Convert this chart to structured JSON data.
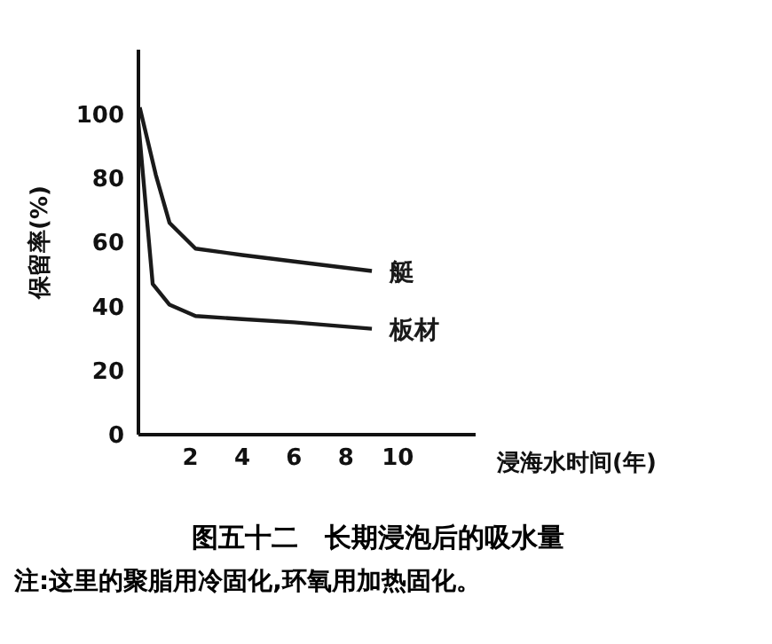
{
  "chart_data": {
    "type": "line",
    "title": "图五十二　长期浸泡后的吸水量",
    "xlabel": "浸海水时间(年)",
    "ylabel": "保留率(%)",
    "annotations": [
      "注:这里的聚脂用冷固化,环氧用加热固化。"
    ],
    "xlim": [
      0,
      13
    ],
    "xticks": [
      2,
      4,
      6,
      8,
      10
    ],
    "ylim": [
      0,
      120
    ],
    "yticks": [
      0,
      20,
      40,
      60,
      80,
      100
    ],
    "grid": false,
    "marker": "none",
    "line_style": "solid",
    "series": [
      {
        "name": "艇",
        "color": "#1a1a1a",
        "x": [
          0.05,
          0.67,
          1.2,
          2.2,
          4,
          6,
          9
        ],
        "values": [
          102,
          81,
          66,
          58,
          56,
          54,
          51
        ]
      },
      {
        "name": "板材",
        "color": "#1a1a1a",
        "x": [
          0,
          0.55,
          1.2,
          2.2,
          4,
          6,
          9
        ],
        "values": [
          97,
          47,
          40.5,
          37,
          36,
          35,
          33
        ]
      }
    ]
  }
}
